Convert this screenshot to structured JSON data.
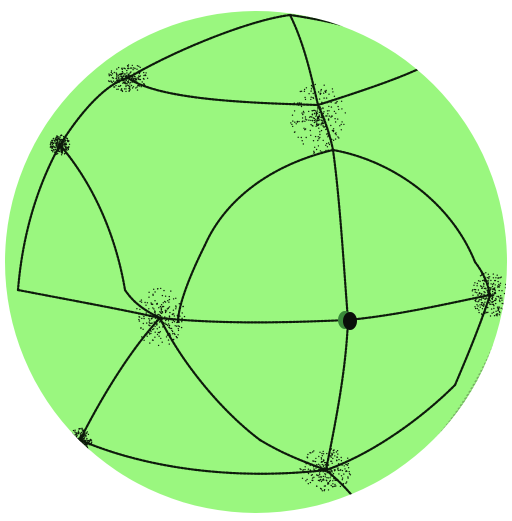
{
  "scene": {
    "subject": "sphere",
    "colors": {
      "background": "#ffffff",
      "sphere_fill": "#9af77f",
      "curve_ink": "#0d1a0b",
      "faint_curve": "#6f9f5f",
      "marker_fill": "#0a0f0a",
      "marker_highlight": "#3a8a3a"
    }
  }
}
